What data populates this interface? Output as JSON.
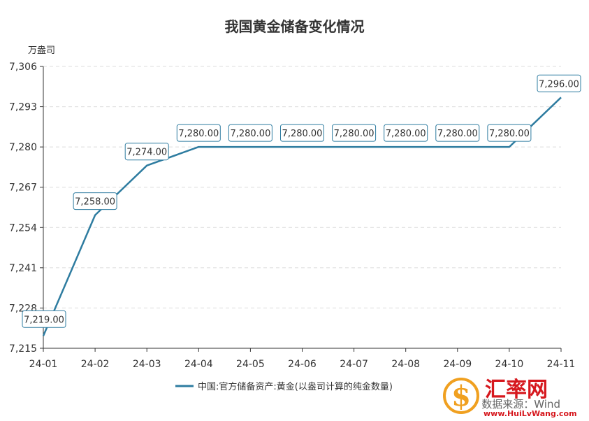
{
  "title": "我国黄金储备变化情况",
  "source": "数据来源：Wind",
  "watermark": {
    "name": "汇率网",
    "url": "www.HuiLvWang.com",
    "logo_glyph": "$",
    "color": "#d6171d",
    "accent": "#f0a020"
  },
  "chart_data": {
    "type": "line",
    "ylabel": "万盎司",
    "ylim": [
      7215,
      7306
    ],
    "yticks": [
      7215,
      7228,
      7241,
      7254,
      7267,
      7280,
      7293,
      7306
    ],
    "ytick_labels": [
      "7,215",
      "7,228",
      "7,241",
      "7,254",
      "7,267",
      "7,280",
      "7,293",
      "7,306"
    ],
    "categories": [
      "24-01",
      "24-02",
      "24-03",
      "24-04",
      "24-05",
      "24-06",
      "24-07",
      "24-08",
      "24-09",
      "24-10",
      "24-11"
    ],
    "grid": true,
    "legend_position": "bottom",
    "series": [
      {
        "name": "中国:官方储备资产:黄金(以盎司计算的纯金数量)",
        "color": "#2e7ca0",
        "values": [
          7219,
          7258,
          7274,
          7280,
          7280,
          7280,
          7280,
          7280,
          7280,
          7280,
          7296
        ],
        "value_labels": [
          "7,219.00",
          "7,258.00",
          "7,274.00",
          "7,280.00",
          "7,280.00",
          "7,280.00",
          "7,280.00",
          "7,280.00",
          "7,280.00",
          "7,280.00",
          "7,296.00"
        ]
      }
    ]
  }
}
